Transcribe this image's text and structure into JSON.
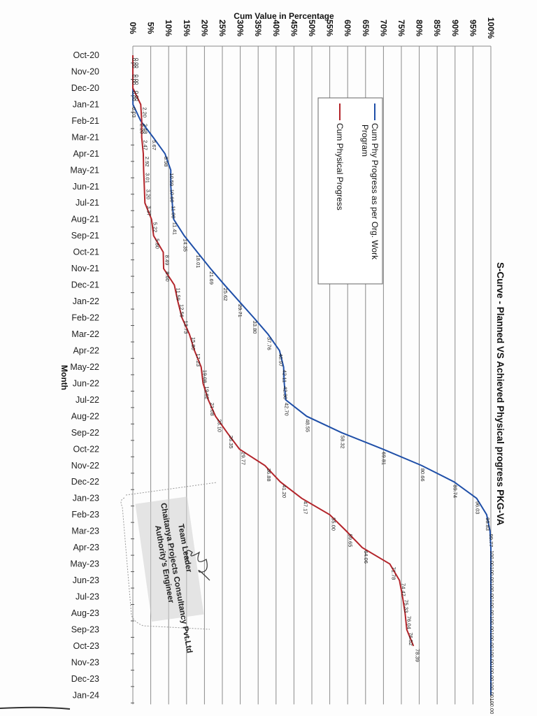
{
  "chart_data": {
    "type": "line",
    "orientation": "rotated-90 (months run top-to-bottom on vertical axis, percentage runs left-to-right on horizontal axis)",
    "title": "S-Curve - Planned VS Achieved Physical progress PKG-VA",
    "xlabel": "Month",
    "ylabel": "Cum Value in Percentage",
    "ylim": [
      0,
      100
    ],
    "y_ticks": [
      "0%",
      "5%",
      "10%",
      "15%",
      "20%",
      "25%",
      "30%",
      "35%",
      "40%",
      "45%",
      "50%",
      "55%",
      "60%",
      "65%",
      "70%",
      "75%",
      "80%",
      "85%",
      "90%",
      "95%",
      "100%"
    ],
    "grid": true,
    "legend_position": "upper-middle inside plot",
    "categories": [
      "Oct-20",
      "Nov-20",
      "Dec-20",
      "Jan-21",
      "Feb-21",
      "Mar-21",
      "Apr-21",
      "May-21",
      "Jun-21",
      "Jul-21",
      "Aug-21",
      "Sep-21",
      "Oct-21",
      "Nov-21",
      "Dec-21",
      "Jan-22",
      "Feb-22",
      "Mar-22",
      "Apr-22",
      "May-22",
      "Jun-22",
      "Jul-22",
      "Aug-22",
      "Sep-22",
      "Oct-22",
      "Nov-22",
      "Dec-22",
      "Jan-23",
      "Feb-23",
      "Mar-23",
      "Apr-23",
      "May-23",
      "Jun-23",
      "Jul-23",
      "Aug-23",
      "Sep-23",
      "Oct-23",
      "Nov-23",
      "Dec-23",
      "Jan-24"
    ],
    "series": [
      {
        "name": "Cum Phy Progress as per Org. Work Program",
        "color": "#1f4fa8",
        "values": [
          0.0,
          0.0,
          0.0,
          0.03,
          2.2,
          5.67,
          8.98,
          10.59,
          10.6,
          11.0,
          11.41,
          14.35,
          18.01,
          21.69,
          25.62,
          29.71,
          33.8,
          37.76,
          40.97,
          42.11,
          42.3,
          42.7,
          48.55,
          58.32,
          69.81,
          80.66,
          89.74,
          96.03,
          98.83,
          99.77,
          100.0,
          100.0,
          100.0,
          100.0,
          100.0,
          100.0,
          100.0,
          100.0,
          100.0,
          100.0
        ]
      },
      {
        "name": "Cum Physical Progress",
        "color": "#b3242a",
        "values": [
          0.0,
          0.0,
          0.0,
          2.2,
          2.48,
          2.47,
          2.92,
          3.01,
          3.2,
          3.37,
          5.22,
          5.8,
          8.49,
          8.6,
          11.59,
          12.56,
          13.73,
          15.8,
          17.23,
          19.08,
          19.62,
          21.08,
          23.1,
          26.35,
          29.77,
          36.88,
          41.2,
          47.17,
          55.0,
          59.65,
          64.06,
          71.78,
          74.47,
          75.33,
          76.04,
          76.52,
          78.39,
          null,
          null,
          null
        ]
      }
    ],
    "annotations": [
      "Team Leader",
      "Chaitanya Projects Consultancy Pvt.Ltd",
      "Authority's Engineer"
    ]
  },
  "labels": {
    "title": "S-Curve - Planned VS Achieved Physical progress PKG-VA",
    "value_axis_title": "Cum Value in Percentage",
    "category_axis_title": "Month",
    "legend_planned": "Cum Phy Progress as per Org. Work",
    "legend_planned_line2": "Program",
    "legend_actual": "Cum Physical Progress",
    "stamp_line1": "Team Leader",
    "stamp_line2": "Chaitanya Projects Consultancy Pvt.Ltd",
    "stamp_line3": "Authority's Engineer"
  }
}
